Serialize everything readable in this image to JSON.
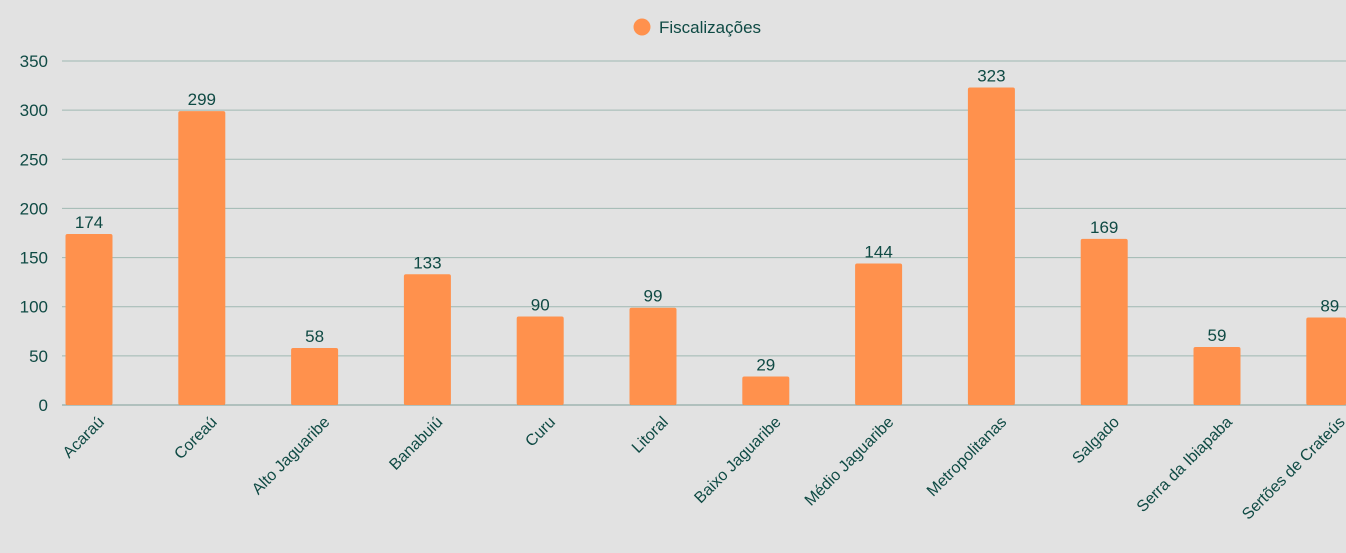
{
  "chart_data": {
    "type": "bar",
    "legend": {
      "label": "Fiscalizações",
      "position": "top-center"
    },
    "categories": [
      "Acaraú",
      "Coreaú",
      "Alto Jaguaribe",
      "Banabuiú",
      "Curu",
      "Litoral",
      "Baixo Jaguaribe",
      "Médio Jaguaribe",
      "Metropolitanas",
      "Salgado",
      "Serra da Ibiapaba",
      "Sertões de Crateús"
    ],
    "series": [
      {
        "name": "Fiscalizações",
        "values": [
          174,
          299,
          58,
          133,
          90,
          99,
          29,
          144,
          323,
          169,
          59,
          89
        ]
      }
    ],
    "ylim": [
      0,
      350
    ],
    "yticks": [
      0,
      50,
      100,
      150,
      200,
      250,
      300,
      350
    ],
    "grid": true,
    "data_labels": true,
    "colors": {
      "bar": "#ff914d",
      "text": "#0f4a44",
      "grid": "#9fb8b2",
      "background": "#e2e2e2"
    }
  }
}
